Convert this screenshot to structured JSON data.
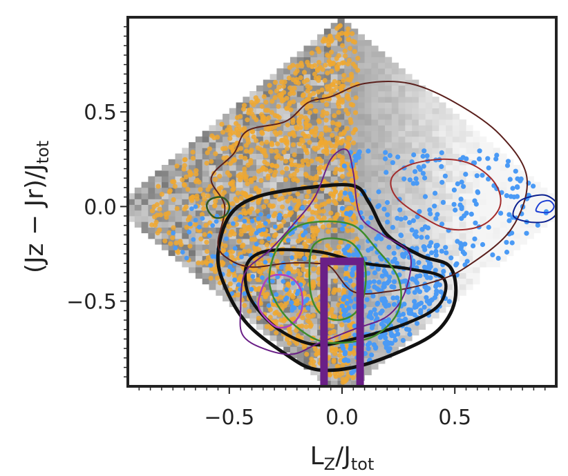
{
  "chart_data": {
    "type": "scatter",
    "title": "",
    "xlabel": {
      "main": "L",
      "sub": "Z",
      "rest": "/J",
      "sub2": "tot"
    },
    "ylabel": {
      "main": "(Jz − Jr)/J",
      "sub": "tot"
    },
    "xlim": [
      -0.95,
      0.95
    ],
    "ylim": [
      -0.95,
      1.0
    ],
    "xticks": [
      {
        "value": -0.5,
        "label": "−0.5"
      },
      {
        "value": 0.0,
        "label": "0.0"
      },
      {
        "value": 0.5,
        "label": "0.5"
      }
    ],
    "yticks": [
      {
        "value": 0.5,
        "label": "0.5"
      },
      {
        "value": 0.0,
        "label": "0.0"
      },
      {
        "value": -0.5,
        "label": "−0.5"
      }
    ],
    "grid": false,
    "background_density": {
      "color_scale": "grey",
      "domain": "action diamond |x| + |y| ≤ 1"
    },
    "series": [
      {
        "kind": "points",
        "color": "#f0a830",
        "region": "x ≤ 0.07"
      },
      {
        "kind": "points",
        "color": "#4a9af5",
        "region": "x > 0 and y < 0.3"
      }
    ],
    "contours": [
      {
        "color": "#111111",
        "width": 5,
        "points": [
          [
            -0.55,
            -0.25
          ],
          [
            -0.5,
            -0.05
          ],
          [
            -0.38,
            0.05
          ],
          [
            -0.15,
            0.1
          ],
          [
            0.05,
            0.11
          ],
          [
            0.12,
            0.02
          ],
          [
            0.2,
            -0.15
          ],
          [
            0.35,
            -0.26
          ],
          [
            0.48,
            -0.32
          ],
          [
            0.5,
            -0.5
          ],
          [
            0.42,
            -0.66
          ],
          [
            0.25,
            -0.77
          ],
          [
            0.05,
            -0.85
          ],
          [
            -0.12,
            -0.86
          ],
          [
            -0.25,
            -0.78
          ],
          [
            -0.42,
            -0.62
          ],
          [
            -0.52,
            -0.42
          ]
        ]
      },
      {
        "color": "#111111",
        "width": 4.5,
        "points": [
          [
            -0.4,
            -0.27
          ],
          [
            -0.3,
            -0.23
          ],
          [
            -0.1,
            -0.24
          ],
          [
            0.1,
            -0.3
          ],
          [
            0.3,
            -0.33
          ],
          [
            0.45,
            -0.38
          ],
          [
            0.43,
            -0.52
          ],
          [
            0.28,
            -0.62
          ],
          [
            0.05,
            -0.7
          ],
          [
            -0.12,
            -0.73
          ],
          [
            -0.28,
            -0.65
          ],
          [
            -0.4,
            -0.5
          ],
          [
            -0.43,
            -0.36
          ]
        ]
      },
      {
        "color": "#5a1f1c",
        "width": 2,
        "points": [
          [
            -0.55,
            -0.2
          ],
          [
            -0.52,
            0.0
          ],
          [
            -0.58,
            0.15
          ],
          [
            -0.48,
            0.28
          ],
          [
            -0.42,
            0.4
          ],
          [
            -0.25,
            0.45
          ],
          [
            -0.15,
            0.55
          ],
          [
            -0.05,
            0.58
          ],
          [
            0.1,
            0.65
          ],
          [
            0.3,
            0.65
          ],
          [
            0.5,
            0.55
          ],
          [
            0.7,
            0.38
          ],
          [
            0.82,
            0.15
          ],
          [
            0.75,
            -0.12
          ],
          [
            0.55,
            -0.32
          ],
          [
            0.4,
            -0.4
          ],
          [
            0.2,
            -0.45
          ],
          [
            0.05,
            -0.45
          ],
          [
            -0.05,
            -0.32
          ],
          [
            -0.12,
            -0.3
          ],
          [
            -0.25,
            -0.3
          ],
          [
            -0.4,
            -0.32
          ],
          [
            -0.5,
            -0.28
          ]
        ]
      },
      {
        "color": "#a32b2b",
        "width": 2,
        "points": [
          [
            0.22,
            0.15
          ],
          [
            0.3,
            0.22
          ],
          [
            0.45,
            0.25
          ],
          [
            0.58,
            0.22
          ],
          [
            0.68,
            0.12
          ],
          [
            0.7,
            0.0
          ],
          [
            0.62,
            -0.1
          ],
          [
            0.48,
            -0.12
          ],
          [
            0.35,
            -0.05
          ],
          [
            0.24,
            0.05
          ]
        ]
      },
      {
        "color": "#0a1f8f",
        "width": 2,
        "points": [
          [
            0.76,
            -0.05
          ],
          [
            0.78,
            0.02
          ],
          [
            0.83,
            0.05
          ],
          [
            0.9,
            0.06
          ],
          [
            0.95,
            0.02
          ],
          [
            0.95,
            -0.04
          ],
          [
            0.9,
            -0.08
          ],
          [
            0.82,
            -0.08
          ]
        ]
      },
      {
        "color": "#1c3fd4",
        "width": 2,
        "points": [
          [
            0.86,
            -0.02
          ],
          [
            0.88,
            0.02
          ],
          [
            0.92,
            0.03
          ],
          [
            0.94,
            0.0
          ],
          [
            0.92,
            -0.03
          ],
          [
            0.88,
            -0.03
          ]
        ]
      },
      {
        "color": "#6a1f87",
        "width": 2,
        "points": [
          [
            -0.45,
            -0.55
          ],
          [
            -0.43,
            -0.35
          ],
          [
            -0.32,
            -0.23
          ],
          [
            -0.22,
            -0.1
          ],
          [
            -0.12,
            0.05
          ],
          [
            -0.05,
            0.25
          ],
          [
            0.02,
            0.3
          ],
          [
            0.05,
            0.18
          ],
          [
            0.08,
            -0.05
          ],
          [
            0.18,
            -0.15
          ],
          [
            0.3,
            -0.25
          ],
          [
            0.28,
            -0.45
          ],
          [
            0.2,
            -0.58
          ],
          [
            0.05,
            -0.65
          ],
          [
            -0.1,
            -0.72
          ],
          [
            -0.22,
            -0.78
          ],
          [
            -0.35,
            -0.75
          ],
          [
            -0.44,
            -0.68
          ]
        ]
      },
      {
        "color": "#b03fc0",
        "width": 2.5,
        "points": [
          [
            -0.36,
            -0.45
          ],
          [
            -0.33,
            -0.38
          ],
          [
            -0.28,
            -0.36
          ],
          [
            -0.22,
            -0.38
          ],
          [
            -0.18,
            -0.45
          ],
          [
            -0.18,
            -0.55
          ],
          [
            -0.22,
            -0.62
          ],
          [
            -0.28,
            -0.64
          ],
          [
            -0.33,
            -0.6
          ],
          [
            -0.37,
            -0.53
          ]
        ]
      },
      {
        "color": "#3d8c2a",
        "width": 2.5,
        "points": [
          [
            -0.3,
            -0.25
          ],
          [
            -0.22,
            -0.12
          ],
          [
            -0.1,
            -0.08
          ],
          [
            0.05,
            -0.1
          ],
          [
            0.15,
            -0.22
          ],
          [
            0.25,
            -0.38
          ],
          [
            0.25,
            -0.55
          ],
          [
            0.15,
            -0.68
          ],
          [
            0.0,
            -0.72
          ],
          [
            -0.12,
            -0.7
          ],
          [
            -0.25,
            -0.58
          ],
          [
            -0.32,
            -0.42
          ]
        ]
      },
      {
        "color": "#3d8c2a",
        "width": 2.5,
        "points": [
          [
            -0.14,
            -0.25
          ],
          [
            -0.1,
            -0.18
          ],
          [
            -0.02,
            -0.17
          ],
          [
            0.05,
            -0.2
          ],
          [
            0.1,
            -0.3
          ],
          [
            0.1,
            -0.45
          ],
          [
            0.06,
            -0.56
          ],
          [
            -0.02,
            -0.6
          ],
          [
            -0.1,
            -0.56
          ],
          [
            -0.14,
            -0.45
          ]
        ]
      },
      {
        "color": "#2f5a1f",
        "width": 2.5,
        "points": [
          [
            -0.6,
            0.01
          ],
          [
            -0.58,
            0.04
          ],
          [
            -0.54,
            0.05
          ],
          [
            -0.51,
            0.03
          ],
          [
            -0.5,
            -0.01
          ],
          [
            -0.52,
            -0.05
          ],
          [
            -0.56,
            -0.06
          ],
          [
            -0.59,
            -0.03
          ]
        ]
      }
    ],
    "bracket": {
      "color": "#6a1f87",
      "x": [
        -0.08,
        0.08
      ],
      "y_top": -0.29
    }
  }
}
